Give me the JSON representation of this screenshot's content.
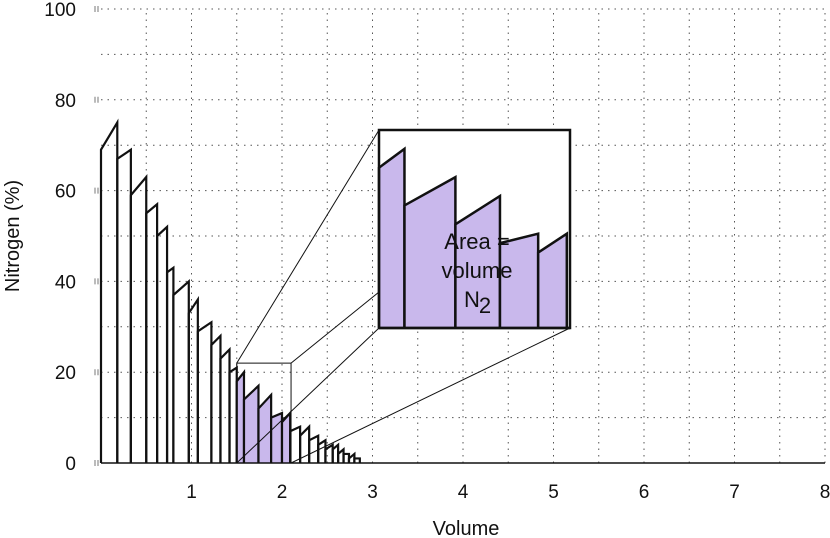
{
  "chart_data": {
    "type": "area",
    "xlabel": "Volume",
    "ylabel": "Nitrogen (%)",
    "xlim": [
      0,
      8
    ],
    "ylim": [
      0,
      100
    ],
    "xticks": [
      "1",
      "2",
      "3",
      "4",
      "5",
      "6",
      "7",
      "8"
    ],
    "yticks": [
      "0",
      "20",
      "40",
      "60",
      "80",
      "100"
    ],
    "grid": true,
    "highlight_x_range": [
      1.5,
      2.1
    ],
    "fill_color": "#c9b8ec",
    "breaths": [
      {
        "x0": 0.0,
        "x1": 0.18,
        "y0": 69,
        "y1": 75
      },
      {
        "x0": 0.18,
        "x1": 0.33,
        "y0": 67,
        "y1": 69
      },
      {
        "x0": 0.33,
        "x1": 0.5,
        "y0": 59,
        "y1": 63
      },
      {
        "x0": 0.5,
        "x1": 0.62,
        "y0": 55,
        "y1": 57
      },
      {
        "x0": 0.62,
        "x1": 0.73,
        "y0": 50,
        "y1": 52
      },
      {
        "x0": 0.73,
        "x1": 0.8,
        "y0": 42,
        "y1": 43
      },
      {
        "x0": 0.8,
        "x1": 0.97,
        "y0": 37,
        "y1": 40
      },
      {
        "x0": 0.97,
        "x1": 1.07,
        "y0": 33,
        "y1": 36
      },
      {
        "x0": 1.07,
        "x1": 1.22,
        "y0": 29,
        "y1": 31
      },
      {
        "x0": 1.22,
        "x1": 1.32,
        "y0": 26,
        "y1": 28
      },
      {
        "x0": 1.32,
        "x1": 1.42,
        "y0": 23,
        "y1": 25
      },
      {
        "x0": 1.42,
        "x1": 1.5,
        "y0": 20,
        "y1": 21
      },
      {
        "x0": 1.5,
        "x1": 1.58,
        "y0": 18,
        "y1": 20
      },
      {
        "x0": 1.58,
        "x1": 1.74,
        "y0": 14,
        "y1": 17
      },
      {
        "x0": 1.74,
        "x1": 1.88,
        "y0": 12,
        "y1": 15
      },
      {
        "x0": 1.88,
        "x1": 2.0,
        "y0": 10,
        "y1": 11
      },
      {
        "x0": 2.0,
        "x1": 2.09,
        "y0": 9,
        "y1": 11
      },
      {
        "x0": 2.09,
        "x1": 2.2,
        "y0": 7,
        "y1": 8
      },
      {
        "x0": 2.2,
        "x1": 2.3,
        "y0": 6,
        "y1": 8
      },
      {
        "x0": 2.3,
        "x1": 2.4,
        "y0": 5,
        "y1": 6
      },
      {
        "x0": 2.4,
        "x1": 2.48,
        "y0": 4,
        "y1": 5
      },
      {
        "x0": 2.48,
        "x1": 2.56,
        "y0": 3,
        "y1": 4
      },
      {
        "x0": 2.56,
        "x1": 2.62,
        "y0": 3,
        "y1": 4
      },
      {
        "x0": 2.62,
        "x1": 2.68,
        "y0": 2,
        "y1": 3
      },
      {
        "x0": 2.68,
        "x1": 2.74,
        "y0": 2,
        "y1": 2
      },
      {
        "x0": 2.74,
        "x1": 2.8,
        "y0": 1,
        "y1": 2
      },
      {
        "x0": 2.8,
        "x1": 2.86,
        "y0": 1,
        "y1": 1
      }
    ],
    "annotations": {
      "inset_line1": "Area =",
      "inset_line2": "volume",
      "inset_line3": "N",
      "inset_subscript": "2"
    }
  }
}
